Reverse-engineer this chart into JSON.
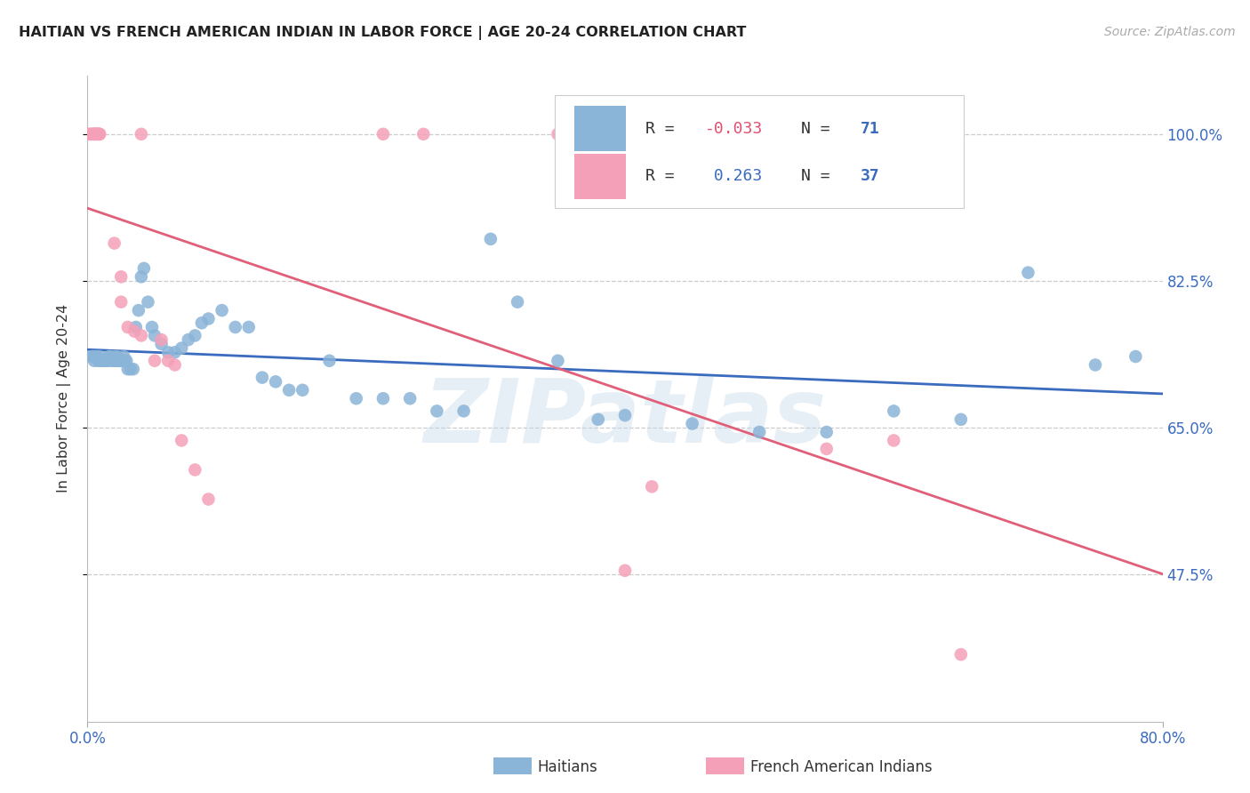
{
  "title": "HAITIAN VS FRENCH AMERICAN INDIAN IN LABOR FORCE | AGE 20-24 CORRELATION CHART",
  "source": "Source: ZipAtlas.com",
  "ylabel": "In Labor Force | Age 20-24",
  "xmin": 0.0,
  "xmax": 0.8,
  "ymin": 0.3,
  "ymax": 1.07,
  "yticks": [
    0.475,
    0.65,
    0.825,
    1.0
  ],
  "ytick_labels": [
    "47.5%",
    "65.0%",
    "82.5%",
    "100.0%"
  ],
  "xtick_positions": [
    0.0,
    0.8
  ],
  "xtick_labels": [
    "0.0%",
    "80.0%"
  ],
  "legend_bottom_labels": [
    "Haitians",
    "French American Indians"
  ],
  "blue_dot_color": "#8ab4d8",
  "pink_dot_color": "#f4a0b8",
  "blue_line_color": "#3b6bbf",
  "pink_line_color": "#e0607a",
  "grid_color": "#cccccc",
  "bg_color": "#ffffff",
  "watermark": "ZIPatlas",
  "blue_x": [
    0.003,
    0.004,
    0.005,
    0.006,
    0.007,
    0.008,
    0.009,
    0.01,
    0.011,
    0.012,
    0.013,
    0.014,
    0.015,
    0.016,
    0.017,
    0.018,
    0.019,
    0.02,
    0.021,
    0.022,
    0.023,
    0.024,
    0.025,
    0.026,
    0.027,
    0.028,
    0.029,
    0.03,
    0.032,
    0.034,
    0.036,
    0.038,
    0.04,
    0.042,
    0.045,
    0.048,
    0.05,
    0.055,
    0.06,
    0.065,
    0.07,
    0.075,
    0.08,
    0.085,
    0.09,
    0.1,
    0.11,
    0.12,
    0.13,
    0.14,
    0.15,
    0.16,
    0.18,
    0.2,
    0.22,
    0.24,
    0.26,
    0.28,
    0.3,
    0.32,
    0.35,
    0.38,
    0.4,
    0.45,
    0.5,
    0.55,
    0.6,
    0.65,
    0.7,
    0.75,
    0.78
  ],
  "blue_y": [
    0.735,
    0.735,
    0.73,
    0.735,
    0.735,
    0.73,
    0.735,
    0.73,
    0.73,
    0.73,
    0.73,
    0.73,
    0.73,
    0.735,
    0.735,
    0.73,
    0.73,
    0.735,
    0.73,
    0.735,
    0.73,
    0.73,
    0.73,
    0.73,
    0.735,
    0.73,
    0.73,
    0.72,
    0.72,
    0.72,
    0.77,
    0.79,
    0.83,
    0.84,
    0.8,
    0.77,
    0.76,
    0.75,
    0.74,
    0.74,
    0.745,
    0.755,
    0.76,
    0.775,
    0.78,
    0.79,
    0.77,
    0.77,
    0.71,
    0.705,
    0.695,
    0.695,
    0.73,
    0.685,
    0.685,
    0.685,
    0.67,
    0.67,
    0.875,
    0.8,
    0.73,
    0.66,
    0.665,
    0.655,
    0.645,
    0.645,
    0.67,
    0.66,
    0.835,
    0.725,
    0.735
  ],
  "pink_x": [
    0.001,
    0.002,
    0.003,
    0.004,
    0.005,
    0.005,
    0.006,
    0.006,
    0.007,
    0.007,
    0.008,
    0.008,
    0.009,
    0.009,
    0.02,
    0.025,
    0.025,
    0.03,
    0.035,
    0.04,
    0.04,
    0.05,
    0.055,
    0.06,
    0.065,
    0.07,
    0.08,
    0.09,
    0.22,
    0.25,
    0.35,
    0.38,
    0.4,
    0.42,
    0.55,
    0.6,
    0.65
  ],
  "pink_y": [
    1.0,
    1.0,
    1.0,
    1.0,
    1.0,
    1.0,
    1.0,
    1.0,
    1.0,
    1.0,
    1.0,
    1.0,
    1.0,
    1.0,
    0.87,
    0.83,
    0.8,
    0.77,
    0.765,
    0.76,
    1.0,
    0.73,
    0.755,
    0.73,
    0.725,
    0.635,
    0.6,
    0.565,
    1.0,
    1.0,
    1.0,
    1.0,
    0.48,
    0.58,
    0.625,
    0.635,
    0.38
  ]
}
